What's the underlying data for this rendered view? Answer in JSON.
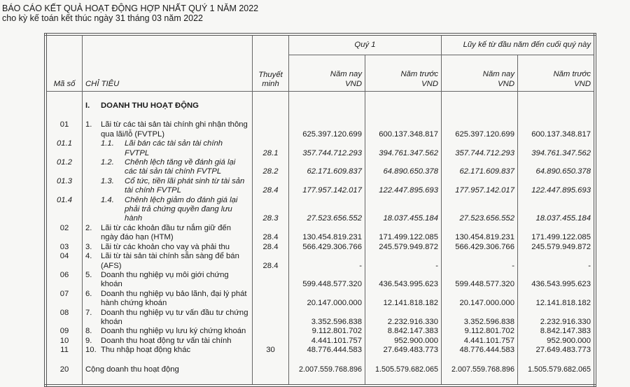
{
  "title": "BÁO CÁO KẾT QUẢ HOẠT ĐỘNG HỢP NHẤT QUÝ 1 NĂM 2022",
  "subtitle": "cho kỳ kế toán kết thúc ngày 31 tháng 03 năm 2022",
  "header": {
    "code": "Mã số",
    "item": "CHỈ TIÊU",
    "note": "Thuyết minh",
    "q1": "Quý 1",
    "ytd": "Lũy kế từ đầu năm đến cuối quý này",
    "cols": [
      {
        "l1": "Năm nay",
        "l2": "VND"
      },
      {
        "l1": "Năm trước",
        "l2": "VND"
      },
      {
        "l1": "Năm nay",
        "l2": "VND"
      },
      {
        "l1": "Năm trước",
        "l2": "VND"
      }
    ]
  },
  "section": {
    "num": "I.",
    "label": "DOANH THU HOẠT ĐỘNG"
  },
  "rows": [
    {
      "code": "01",
      "num": "1.",
      "label": "Lãi từ các tài sản tài chính ghi nhận thông qua lãi/lỗ (FVTPL)",
      "note": "",
      "values": [
        "625.397.120.699",
        "600.137.348.817",
        "625.397.120.699",
        "600.137.348.817"
      ]
    },
    {
      "code": "01.1",
      "num": "1.1.",
      "label": "Lãi bán các tài sản tài chính FVTPL",
      "note": "28.1",
      "values": [
        "357.744.712.293",
        "394.761.347.562",
        "357.744.712.293",
        "394.761.347.562"
      ],
      "sub": true
    },
    {
      "code": "01.2",
      "num": "1.2.",
      "label": "Chênh lệch tăng về đánh giá lại các tài sản tài chính FVTPL",
      "note": "28.2",
      "values": [
        "62.171.609.837",
        "64.890.650.378",
        "62.171.609.837",
        "64.890.650.378"
      ],
      "sub": true
    },
    {
      "code": "01.3",
      "num": "1.3.",
      "label": "Cổ tức, tiền lãi phát sinh từ tài sản tài chính FVTPL",
      "note": "28.4",
      "values": [
        "177.957.142.017",
        "122.447.895.693",
        "177.957.142.017",
        "122.447.895.693"
      ],
      "sub": true
    },
    {
      "code": "01.4",
      "num": "1.4.",
      "label": "Chênh lệch giảm do đánh giá lại phải trả chứng quyền đang lưu hành",
      "note": "28.3",
      "values": [
        "27.523.656.552",
        "18.037.455.184",
        "27.523.656.552",
        "18.037.455.184"
      ],
      "sub": true
    },
    {
      "code": "02",
      "num": "2.",
      "label": "Lãi từ các khoản đầu tư nắm giữ đến ngày đáo hạn (HTM)",
      "note": "28.4",
      "values": [
        "130.454.819.231",
        "171.499.122.085",
        "130.454.819.231",
        "171.499.122.085"
      ]
    },
    {
      "code": "03",
      "num": "3.",
      "label": "Lãi từ các khoản cho vay và phải thu",
      "note": "28.4",
      "values": [
        "566.429.306.766",
        "245.579.949.872",
        "566.429.306.766",
        "245.579.949.872"
      ]
    },
    {
      "code": "04",
      "num": "4.",
      "label": "Lãi từ tài sản tài chính sẵn sàng để bán (AFS)",
      "note": "28.4",
      "values": [
        "-",
        "-",
        "-",
        "-"
      ]
    },
    {
      "code": "06",
      "num": "5.",
      "label": "Doanh thu nghiệp vụ môi giới chứng khoán",
      "note": "",
      "values": [
        "599.448.577.320",
        "436.543.995.623",
        "599.448.577.320",
        "436.543.995.623"
      ]
    },
    {
      "code": "07",
      "num": "6.",
      "label": "Doanh thu nghiệp vụ bảo lãnh, đại lý phát hành chứng khoán",
      "note": "",
      "values": [
        "20.147.000.000",
        "12.141.818.182",
        "20.147.000.000",
        "12.141.818.182"
      ]
    },
    {
      "code": "08",
      "num": "7.",
      "label": "Doanh thu nghiệp vụ tư vấn đầu tư chứng khoán",
      "note": "",
      "values": [
        "3.352.596.838",
        "2.232.916.330",
        "3.352.596.838",
        "2.232.916.330"
      ]
    },
    {
      "code": "09",
      "num": "8.",
      "label": "Doanh thu nghiệp vụ lưu ký chứng khoán",
      "note": "",
      "values": [
        "9.112.801.702",
        "8.842.147.383",
        "9.112.801.702",
        "8.842.147.383"
      ]
    },
    {
      "code": "10",
      "num": "9.",
      "label": "Doanh thu hoạt động tư vấn tài chính",
      "note": "",
      "values": [
        "4.441.101.757",
        "952.900.000",
        "4.441.101.757",
        "952.900.000"
      ]
    },
    {
      "code": "11",
      "num": "10.",
      "label": "Thu nhập hoạt động khác",
      "note": "30",
      "values": [
        "48.776.444.583",
        "27.649.483.773",
        "48.776.444.583",
        "27.649.483.773"
      ]
    }
  ],
  "total": {
    "code": "20",
    "label": "Cộng doanh thu hoạt động",
    "values": [
      "2.007.559.768.896",
      "1.505.579.682.065",
      "2.007.559.768.896",
      "1.505.579.682.065"
    ]
  }
}
